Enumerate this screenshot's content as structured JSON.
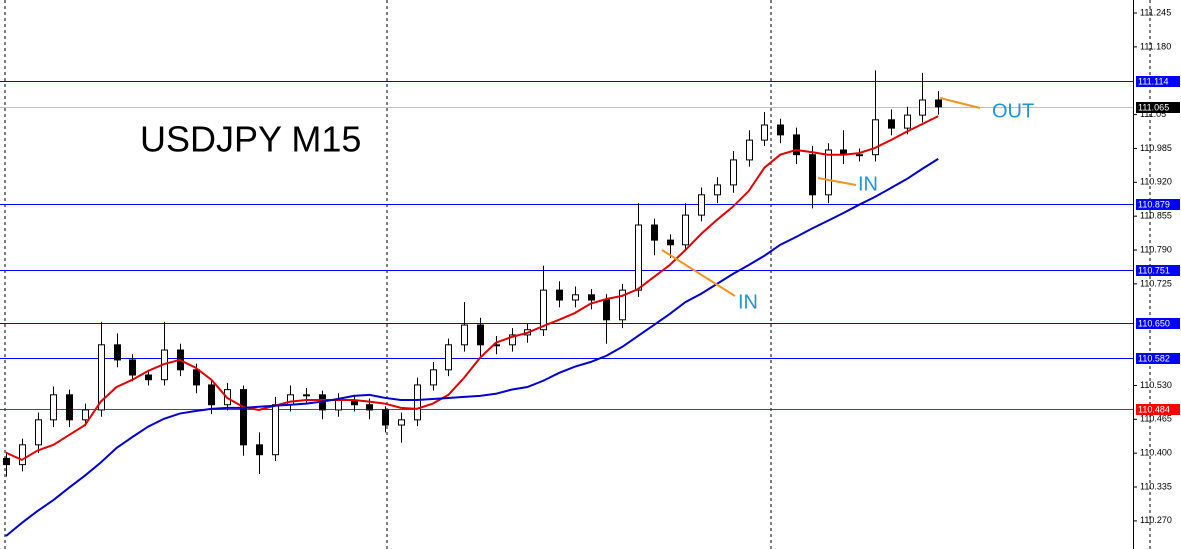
{
  "chart_data": {
    "type": "candlestick",
    "title": "USDJPY M15",
    "ylim": [
      110.216,
      111.27
    ],
    "yticks": [
      111.245,
      {
        "value": 111.18,
        "label": "111.180"
      },
      111.05,
      110.985,
      {
        "value": 110.92,
        "label": "110.920"
      },
      110.855,
      {
        "value": 110.79,
        "label": "110.790"
      },
      110.725,
      {
        "value": 110.53,
        "label": "110.530"
      },
      110.465,
      {
        "value": 110.4,
        "label": "110.400"
      },
      110.335,
      {
        "value": 110.27,
        "label": "110.270"
      }
    ],
    "open": [
      110.39,
      110.378,
      110.416,
      110.464,
      110.512,
      110.464,
      110.483,
      110.608,
      110.579,
      110.55,
      110.541,
      110.598,
      110.56,
      110.531,
      110.493,
      110.522,
      110.416,
      110.397,
      110.493,
      110.512,
      110.512,
      110.483,
      110.502,
      110.493,
      110.483,
      110.454,
      110.464,
      110.531,
      110.56,
      110.608,
      110.646,
      110.608,
      110.608,
      110.627,
      110.637,
      110.713,
      110.694,
      110.704,
      110.694,
      110.656,
      110.713,
      110.838,
      110.809,
      110.8,
      110.857,
      110.896,
      110.915,
      110.963,
      111.001,
      111.03,
      111.011,
      110.973,
      110.896,
      110.982,
      110.973,
      110.973,
      111.04,
      111.024,
      111.049,
      111.078
    ],
    "high": [
      110.402,
      110.428,
      110.478,
      110.528,
      110.522,
      110.495,
      110.652,
      110.63,
      110.59,
      110.56,
      110.652,
      110.61,
      110.572,
      110.54,
      110.535,
      110.53,
      110.44,
      110.508,
      110.53,
      110.525,
      110.52,
      110.515,
      110.512,
      110.505,
      110.49,
      110.478,
      110.545,
      110.575,
      110.62,
      110.69,
      110.66,
      110.625,
      110.64,
      110.65,
      110.76,
      110.73,
      110.72,
      110.715,
      110.705,
      110.725,
      110.88,
      110.85,
      110.82,
      110.88,
      110.91,
      110.93,
      110.98,
      111.02,
      111.055,
      111.042,
      111.025,
      110.99,
      110.995,
      111.02,
      110.985,
      111.135,
      111.06,
      111.065,
      111.13,
      111.095
    ],
    "low": [
      110.355,
      110.365,
      110.4,
      110.45,
      110.45,
      110.452,
      110.47,
      110.565,
      110.538,
      110.53,
      110.53,
      110.548,
      110.515,
      110.475,
      110.482,
      110.395,
      110.36,
      110.385,
      110.48,
      110.495,
      110.465,
      110.47,
      110.48,
      110.465,
      110.44,
      110.42,
      110.452,
      110.52,
      110.548,
      110.595,
      110.585,
      110.59,
      110.595,
      110.612,
      110.625,
      110.68,
      110.68,
      110.676,
      110.61,
      110.64,
      110.7,
      110.78,
      110.775,
      110.788,
      110.845,
      110.88,
      110.9,
      110.95,
      110.99,
      110.995,
      110.955,
      110.87,
      110.88,
      110.955,
      110.96,
      110.96,
      111.01,
      111.012,
      111.035,
      111.05
    ],
    "close": [
      110.378,
      110.416,
      110.464,
      110.512,
      110.464,
      110.483,
      110.608,
      110.579,
      110.55,
      110.541,
      110.598,
      110.56,
      110.531,
      110.493,
      110.522,
      110.416,
      110.397,
      110.493,
      110.512,
      110.512,
      110.483,
      110.502,
      110.493,
      110.483,
      110.454,
      110.464,
      110.531,
      110.56,
      110.608,
      110.646,
      110.608,
      110.608,
      110.627,
      110.637,
      110.713,
      110.694,
      110.704,
      110.694,
      110.656,
      110.713,
      110.838,
      110.809,
      110.8,
      110.857,
      110.896,
      110.915,
      110.963,
      111.001,
      111.03,
      111.011,
      110.973,
      110.896,
      110.982,
      110.973,
      110.973,
      111.04,
      111.024,
      111.049,
      111.078,
      111.065
    ],
    "series": [
      {
        "color": "#e00000",
        "values": [
          110.401,
          110.387,
          110.405,
          110.416,
          110.435,
          110.454,
          110.499,
          110.527,
          110.541,
          110.558,
          110.571,
          110.579,
          110.564,
          110.541,
          110.506,
          110.489,
          110.483,
          110.491,
          110.499,
          110.502,
          110.502,
          110.502,
          110.502,
          110.499,
          110.495,
          110.487,
          110.485,
          110.495,
          110.512,
          110.545,
          110.583,
          110.612,
          110.623,
          110.631,
          110.644,
          110.656,
          110.669,
          110.687,
          110.696,
          110.702,
          110.715,
          110.738,
          110.761,
          110.79,
          110.821,
          110.848,
          110.873,
          110.903,
          110.948,
          110.973,
          110.982,
          110.978,
          110.973,
          110.973,
          110.976,
          110.986,
          111.001,
          111.017,
          111.032,
          111.047
        ]
      },
      {
        "color": "#0000cc",
        "values": [
          110.241,
          110.266,
          110.289,
          110.31,
          110.334,
          110.357,
          110.382,
          110.41,
          110.431,
          110.451,
          110.466,
          110.476,
          110.481,
          110.485,
          110.487,
          110.487,
          110.489,
          110.491,
          110.493,
          110.495,
          110.499,
          110.504,
          110.51,
          110.512,
          110.506,
          110.502,
          110.502,
          110.504,
          110.506,
          110.508,
          110.51,
          110.514,
          110.522,
          110.527,
          110.539,
          110.554,
          110.566,
          110.575,
          110.587,
          110.604,
          110.625,
          110.646,
          110.667,
          110.69,
          110.706,
          110.725,
          110.744,
          110.761,
          110.779,
          110.8,
          110.815,
          110.831,
          110.846,
          110.861,
          110.877,
          110.892,
          110.909,
          110.926,
          110.946,
          110.965
        ]
      }
    ],
    "levels": [
      {
        "value": 111.114,
        "label": "111.114",
        "color": "#0000ff"
      },
      {
        "value": 110.879,
        "label": "110.879",
        "color": "#0000ff"
      },
      {
        "value": 110.751,
        "label": "110.751",
        "color": "#0000ff"
      },
      {
        "value": 110.65,
        "label": "110.650",
        "color": "#0000ff"
      },
      {
        "value": 110.582,
        "label": "110.582",
        "color": "#0000ff"
      },
      {
        "value": 110.484,
        "label": "110.484",
        "color": "#ff0000"
      }
    ],
    "current_price": {
      "value": 111.065,
      "label": "111.065",
      "color": "#c0c0c0"
    },
    "annotations": [
      "OUT",
      "IN",
      "IN"
    ]
  }
}
